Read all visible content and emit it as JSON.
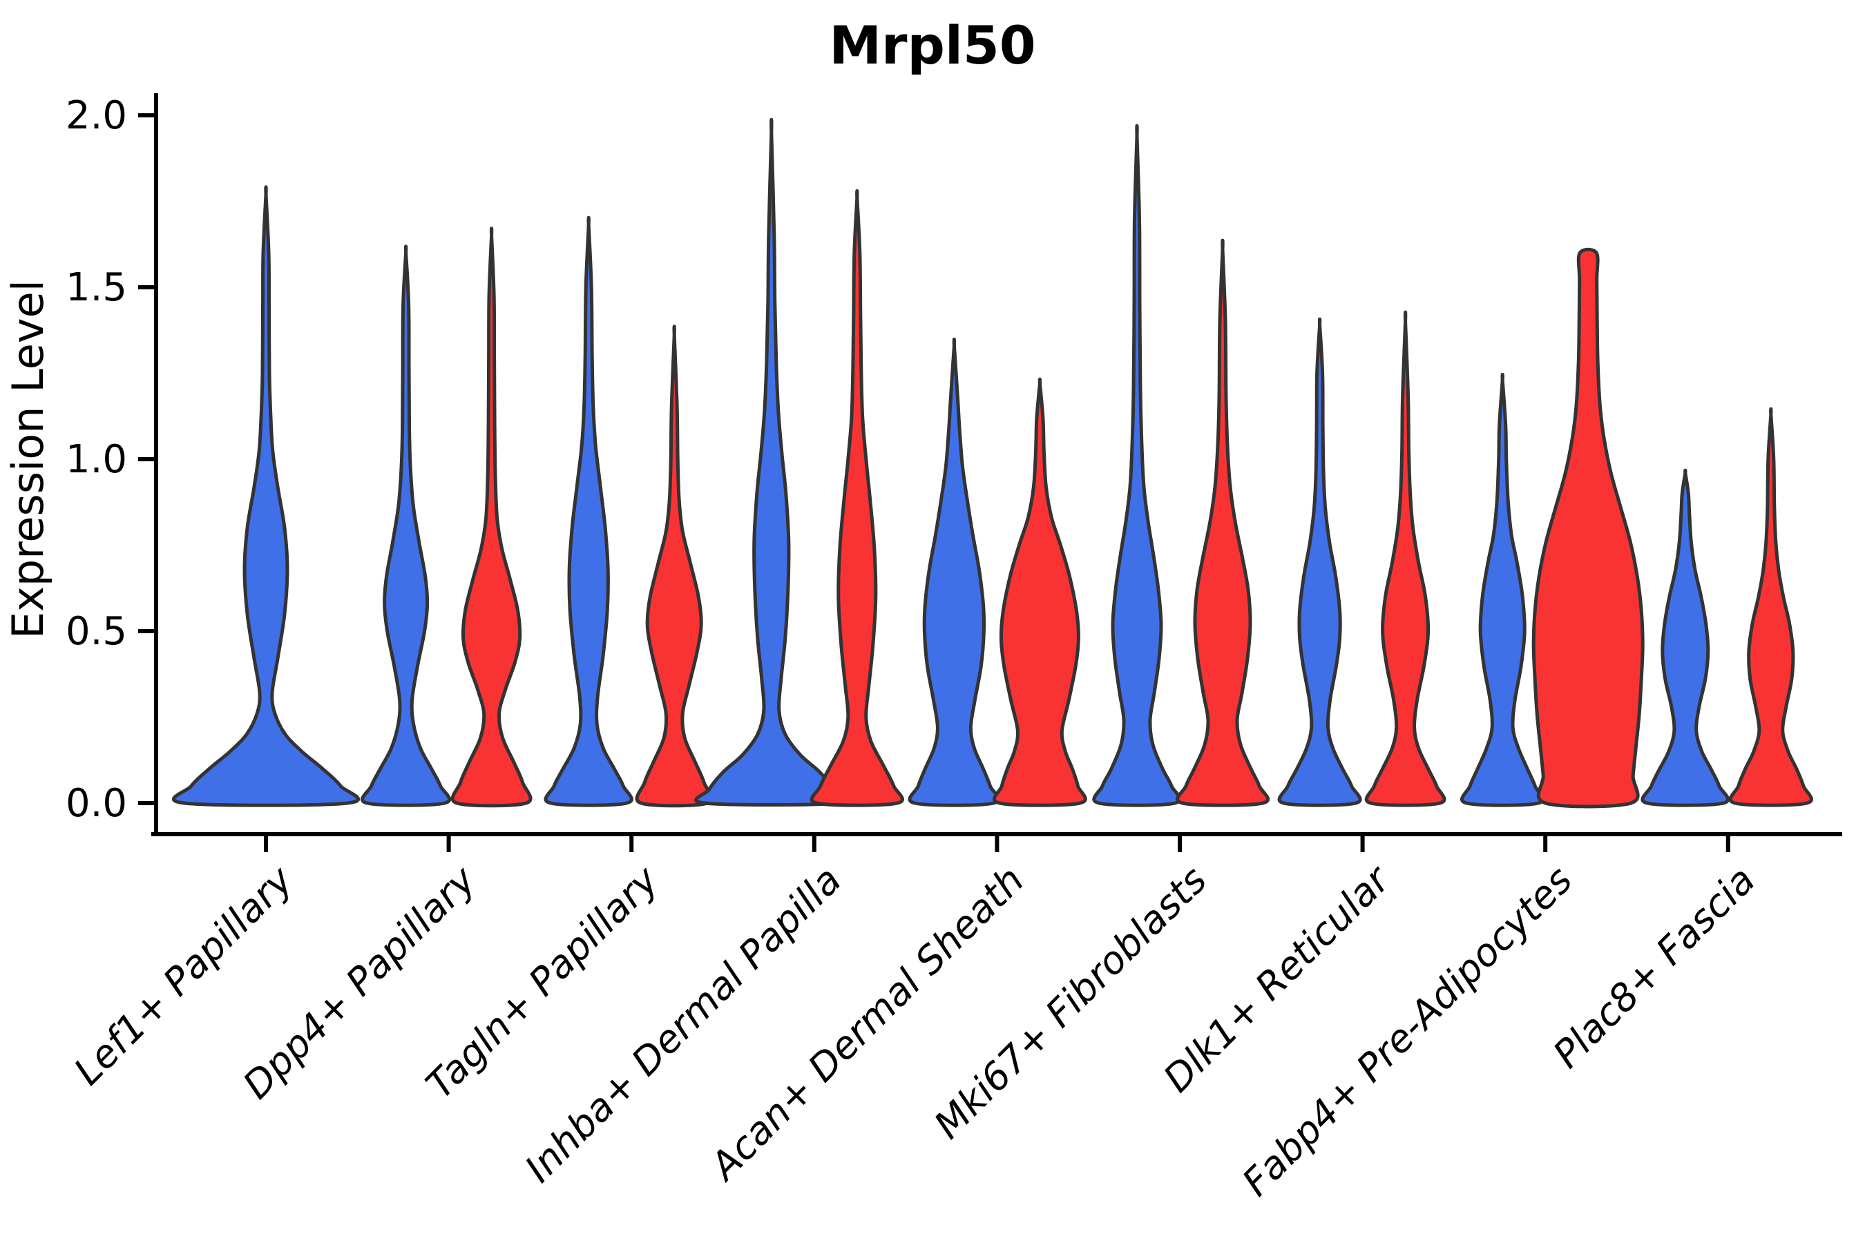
{
  "title": "Mrpl50",
  "ylabel": "Expression Level",
  "chart_data": {
    "type": "violin",
    "title": "Mrpl50",
    "xlabel": "",
    "ylabel": "Expression Level",
    "ylim": [
      0,
      2.05
    ],
    "yticks": [
      "0.0",
      "0.5",
      "1.0",
      "1.5",
      "2.0"
    ],
    "ytick_values": [
      0.0,
      0.5,
      1.0,
      1.5,
      2.0
    ],
    "grid": false,
    "legend": null,
    "colors": {
      "series1": "#4070E8",
      "series2": "#F93333",
      "outline": "#333333"
    },
    "categories": [
      "Lef1+ Papillary",
      "Dpp4+ Papillary",
      "Tagln+ Papillary",
      "Inhba+ Dermal Papilla",
      "Acan+ Dermal Sheath",
      "Mki67+ Fibroblasts",
      "Dlk1+ Reticular",
      "Fabp4+ Pre-Adipocytes",
      "Plac8+ Fascia"
    ],
    "violins": [
      {
        "category_index": 0,
        "side": "center",
        "color": "series1",
        "max_expression": 1.77,
        "profile": [
          [
            0,
            118
          ],
          [
            0.05,
            108
          ],
          [
            0.1,
            82
          ],
          [
            0.15,
            52
          ],
          [
            0.2,
            28
          ],
          [
            0.26,
            13
          ],
          [
            0.32,
            9
          ],
          [
            0.42,
            17
          ],
          [
            0.55,
            27
          ],
          [
            0.68,
            31
          ],
          [
            0.8,
            27
          ],
          [
            0.92,
            17
          ],
          [
            1.02,
            10
          ],
          [
            1.12,
            7
          ],
          [
            1.25,
            5
          ],
          [
            1.45,
            4.5
          ],
          [
            1.6,
            4
          ],
          [
            1.77,
            0
          ]
        ]
      },
      {
        "category_index": 1,
        "side": "left",
        "color": "series1",
        "max_expression": 1.6,
        "profile": [
          [
            0,
            56
          ],
          [
            0.05,
            50
          ],
          [
            0.1,
            37
          ],
          [
            0.16,
            21
          ],
          [
            0.23,
            11
          ],
          [
            0.3,
            9
          ],
          [
            0.4,
            17
          ],
          [
            0.5,
            27
          ],
          [
            0.58,
            31
          ],
          [
            0.66,
            28
          ],
          [
            0.76,
            19
          ],
          [
            0.86,
            11
          ],
          [
            0.96,
            7
          ],
          [
            1.08,
            5
          ],
          [
            1.25,
            4.5
          ],
          [
            1.45,
            4
          ],
          [
            1.6,
            0
          ]
        ]
      },
      {
        "category_index": 1,
        "side": "right",
        "color": "series2",
        "max_expression": 1.65,
        "profile": [
          [
            0,
            50
          ],
          [
            0.06,
            45
          ],
          [
            0.12,
            32
          ],
          [
            0.19,
            16
          ],
          [
            0.26,
            11
          ],
          [
            0.33,
            20
          ],
          [
            0.41,
            34
          ],
          [
            0.48,
            41
          ],
          [
            0.56,
            38
          ],
          [
            0.65,
            27
          ],
          [
            0.74,
            15
          ],
          [
            0.83,
            8
          ],
          [
            0.95,
            5.5
          ],
          [
            1.1,
            4.5
          ],
          [
            1.3,
            4
          ],
          [
            1.48,
            3.5
          ],
          [
            1.65,
            0
          ]
        ]
      },
      {
        "category_index": 2,
        "side": "left",
        "color": "series1",
        "max_expression": 1.68,
        "profile": [
          [
            0,
            55
          ],
          [
            0.05,
            50
          ],
          [
            0.1,
            37
          ],
          [
            0.16,
            21
          ],
          [
            0.23,
            12
          ],
          [
            0.31,
            13
          ],
          [
            0.43,
            21
          ],
          [
            0.56,
            27
          ],
          [
            0.68,
            28
          ],
          [
            0.8,
            24
          ],
          [
            0.92,
            17
          ],
          [
            1.04,
            10
          ],
          [
            1.16,
            6.5
          ],
          [
            1.3,
            5
          ],
          [
            1.5,
            4
          ],
          [
            1.68,
            0
          ]
        ]
      },
      {
        "category_index": 2,
        "side": "right",
        "color": "series2",
        "max_expression": 1.36,
        "profile": [
          [
            0,
            48
          ],
          [
            0.06,
            43
          ],
          [
            0.12,
            30
          ],
          [
            0.19,
            15
          ],
          [
            0.26,
            12
          ],
          [
            0.34,
            21
          ],
          [
            0.44,
            33
          ],
          [
            0.52,
            39
          ],
          [
            0.6,
            35
          ],
          [
            0.7,
            23
          ],
          [
            0.79,
            12
          ],
          [
            0.88,
            7
          ],
          [
            1.0,
            5
          ],
          [
            1.15,
            4
          ],
          [
            1.36,
            0
          ]
        ]
      },
      {
        "category_index": 3,
        "side": "left",
        "color": "series1",
        "max_expression": 1.95,
        "profile": [
          [
            0,
            96
          ],
          [
            0.04,
            90
          ],
          [
            0.09,
            70
          ],
          [
            0.14,
            42
          ],
          [
            0.2,
            20
          ],
          [
            0.27,
            11
          ],
          [
            0.36,
            14
          ],
          [
            0.48,
            20
          ],
          [
            0.62,
            24
          ],
          [
            0.76,
            25
          ],
          [
            0.9,
            21
          ],
          [
            1.02,
            15
          ],
          [
            1.14,
            10
          ],
          [
            1.28,
            7
          ],
          [
            1.45,
            5
          ],
          [
            1.65,
            4
          ],
          [
            1.95,
            0
          ]
        ]
      },
      {
        "category_index": 3,
        "side": "right",
        "color": "series2",
        "max_expression": 1.76,
        "profile": [
          [
            0,
            58
          ],
          [
            0.05,
            53
          ],
          [
            0.11,
            38
          ],
          [
            0.18,
            20
          ],
          [
            0.25,
            13
          ],
          [
            0.34,
            17
          ],
          [
            0.46,
            23
          ],
          [
            0.6,
            27
          ],
          [
            0.74,
            25
          ],
          [
            0.88,
            19
          ],
          [
            1.0,
            13
          ],
          [
            1.12,
            8
          ],
          [
            1.26,
            6
          ],
          [
            1.42,
            5
          ],
          [
            1.6,
            4
          ],
          [
            1.76,
            0
          ]
        ]
      },
      {
        "category_index": 4,
        "side": "left",
        "color": "series1",
        "max_expression": 1.33,
        "profile": [
          [
            0,
            57
          ],
          [
            0.05,
            52
          ],
          [
            0.1,
            42
          ],
          [
            0.16,
            29
          ],
          [
            0.22,
            24
          ],
          [
            0.3,
            30
          ],
          [
            0.4,
            39
          ],
          [
            0.5,
            43
          ],
          [
            0.58,
            42
          ],
          [
            0.68,
            36
          ],
          [
            0.78,
            27
          ],
          [
            0.88,
            19
          ],
          [
            0.98,
            12
          ],
          [
            1.08,
            8
          ],
          [
            1.18,
            5
          ],
          [
            1.33,
            0
          ]
        ]
      },
      {
        "category_index": 4,
        "side": "right",
        "color": "series2",
        "max_expression": 1.22,
        "profile": [
          [
            0,
            58
          ],
          [
            0.05,
            55
          ],
          [
            0.1,
            47
          ],
          [
            0.15,
            37
          ],
          [
            0.21,
            32
          ],
          [
            0.3,
            42
          ],
          [
            0.4,
            52
          ],
          [
            0.48,
            56
          ],
          [
            0.56,
            53
          ],
          [
            0.66,
            43
          ],
          [
            0.75,
            30
          ],
          [
            0.83,
            17
          ],
          [
            0.92,
            9
          ],
          [
            1.02,
            6
          ],
          [
            1.12,
            4.5
          ],
          [
            1.22,
            0
          ]
        ]
      },
      {
        "category_index": 5,
        "side": "left",
        "color": "series1",
        "max_expression": 1.94,
        "profile": [
          [
            0,
            55
          ],
          [
            0.05,
            50
          ],
          [
            0.1,
            37
          ],
          [
            0.17,
            23
          ],
          [
            0.24,
            19
          ],
          [
            0.32,
            25
          ],
          [
            0.42,
            32
          ],
          [
            0.52,
            35
          ],
          [
            0.62,
            31
          ],
          [
            0.72,
            24
          ],
          [
            0.82,
            16
          ],
          [
            0.92,
            10
          ],
          [
            1.04,
            7
          ],
          [
            1.2,
            5
          ],
          [
            1.45,
            4
          ],
          [
            1.7,
            3.5
          ],
          [
            1.94,
            0
          ]
        ]
      },
      {
        "category_index": 5,
        "side": "right",
        "color": "series2",
        "max_expression": 1.61,
        "profile": [
          [
            0,
            58
          ],
          [
            0.05,
            53
          ],
          [
            0.1,
            41
          ],
          [
            0.17,
            26
          ],
          [
            0.24,
            21
          ],
          [
            0.32,
            28
          ],
          [
            0.42,
            36
          ],
          [
            0.52,
            40
          ],
          [
            0.62,
            37
          ],
          [
            0.72,
            28
          ],
          [
            0.82,
            18
          ],
          [
            0.92,
            11
          ],
          [
            1.04,
            7
          ],
          [
            1.18,
            5
          ],
          [
            1.4,
            4
          ],
          [
            1.61,
            0
          ]
        ]
      },
      {
        "category_index": 6,
        "side": "left",
        "color": "series1",
        "max_expression": 1.39,
        "profile": [
          [
            0,
            52
          ],
          [
            0.05,
            46
          ],
          [
            0.1,
            33
          ],
          [
            0.16,
            19
          ],
          [
            0.22,
            12
          ],
          [
            0.3,
            15
          ],
          [
            0.4,
            24
          ],
          [
            0.48,
            29
          ],
          [
            0.56,
            29
          ],
          [
            0.66,
            23
          ],
          [
            0.76,
            14
          ],
          [
            0.86,
            8
          ],
          [
            0.96,
            5.5
          ],
          [
            1.1,
            4.5
          ],
          [
            1.25,
            4
          ],
          [
            1.39,
            0
          ]
        ]
      },
      {
        "category_index": 6,
        "side": "right",
        "color": "series2",
        "max_expression": 1.4,
        "profile": [
          [
            0,
            50
          ],
          [
            0.05,
            45
          ],
          [
            0.1,
            33
          ],
          [
            0.16,
            19
          ],
          [
            0.22,
            13
          ],
          [
            0.3,
            17
          ],
          [
            0.4,
            27
          ],
          [
            0.5,
            33
          ],
          [
            0.6,
            29
          ],
          [
            0.7,
            19
          ],
          [
            0.8,
            11
          ],
          [
            0.9,
            7
          ],
          [
            1.02,
            5
          ],
          [
            1.18,
            4
          ],
          [
            1.4,
            0
          ]
        ]
      },
      {
        "category_index": 7,
        "side": "left",
        "color": "series1",
        "max_expression": 1.23,
        "profile": [
          [
            0,
            52
          ],
          [
            0.05,
            47
          ],
          [
            0.1,
            36
          ],
          [
            0.16,
            23
          ],
          [
            0.22,
            15
          ],
          [
            0.3,
            18
          ],
          [
            0.4,
            27
          ],
          [
            0.5,
            32
          ],
          [
            0.6,
            29
          ],
          [
            0.7,
            21
          ],
          [
            0.78,
            13
          ],
          [
            0.88,
            8
          ],
          [
            1.0,
            5.5
          ],
          [
            1.1,
            4.5
          ],
          [
            1.23,
            0
          ]
        ]
      },
      {
        "category_index": 7,
        "side": "right",
        "color": "series2",
        "max_expression": 1.6,
        "clipped_top": true,
        "profile": [
          [
            0,
            62
          ],
          [
            0.08,
            65
          ],
          [
            0.16,
            69
          ],
          [
            0.26,
            74
          ],
          [
            0.36,
            77
          ],
          [
            0.46,
            79
          ],
          [
            0.56,
            77
          ],
          [
            0.66,
            71
          ],
          [
            0.76,
            61
          ],
          [
            0.86,
            47
          ],
          [
            0.96,
            33
          ],
          [
            1.06,
            23
          ],
          [
            1.16,
            17
          ],
          [
            1.28,
            14
          ],
          [
            1.4,
            13
          ],
          [
            1.52,
            12.5
          ],
          [
            1.6,
            12
          ]
        ]
      },
      {
        "category_index": 8,
        "side": "left",
        "color": "series1",
        "max_expression": 0.96,
        "profile": [
          [
            0,
            55
          ],
          [
            0.05,
            49
          ],
          [
            0.1,
            37
          ],
          [
            0.15,
            24
          ],
          [
            0.21,
            16
          ],
          [
            0.28,
            20
          ],
          [
            0.36,
            29
          ],
          [
            0.44,
            33
          ],
          [
            0.52,
            30
          ],
          [
            0.6,
            23
          ],
          [
            0.68,
            14
          ],
          [
            0.76,
            8.5
          ],
          [
            0.84,
            6
          ],
          [
            0.9,
            4.5
          ],
          [
            0.96,
            0
          ]
        ]
      },
      {
        "category_index": 8,
        "side": "right",
        "color": "series2",
        "max_expression": 1.13,
        "profile": [
          [
            0,
            52
          ],
          [
            0.05,
            47
          ],
          [
            0.1,
            37
          ],
          [
            0.15,
            25
          ],
          [
            0.21,
            17
          ],
          [
            0.28,
            22
          ],
          [
            0.36,
            30
          ],
          [
            0.44,
            32
          ],
          [
            0.52,
            27
          ],
          [
            0.6,
            18
          ],
          [
            0.68,
            11
          ],
          [
            0.76,
            7
          ],
          [
            0.86,
            5
          ],
          [
            1.0,
            4
          ],
          [
            1.13,
            0
          ]
        ]
      }
    ]
  }
}
